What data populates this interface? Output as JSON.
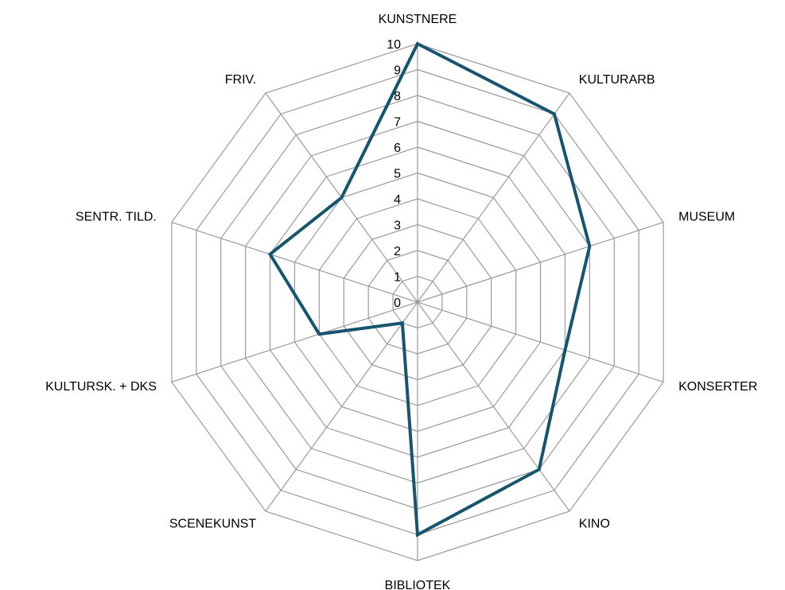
{
  "chart_data": {
    "type": "radar",
    "categories": [
      "KUNSTNERE",
      "KULTURARB",
      "MUSEUM",
      "KONSERTER",
      "KINO",
      "BIBLIOTEK",
      "SCENEKUNST",
      "KULTURSK. + DKS",
      "SENTR. TILD.",
      "FRIV."
    ],
    "series": [
      {
        "color": "#17556e",
        "values": [
          10,
          9,
          7,
          6,
          8,
          9,
          1,
          4,
          6,
          5
        ]
      }
    ],
    "ylim": [
      0,
      10
    ],
    "yticks": [
      0,
      1,
      2,
      3,
      4,
      5,
      6,
      7,
      8,
      9,
      10
    ],
    "grid": true
  }
}
